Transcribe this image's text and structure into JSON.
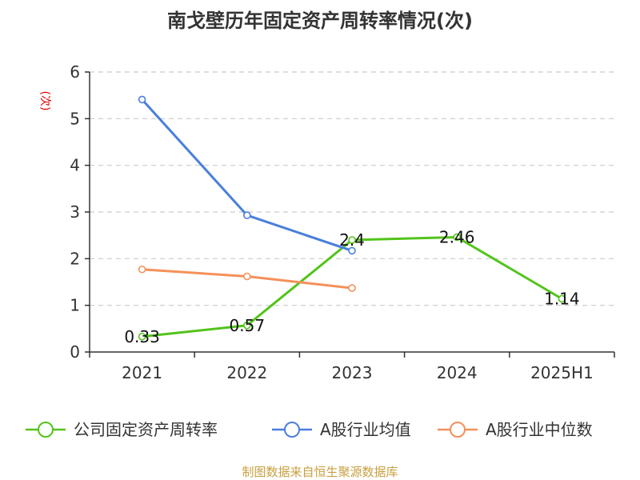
{
  "chart_data": {
    "type": "line",
    "title": "南戈壁历年固定资产周转率情况(次)",
    "ylabel": "(次)",
    "xlabel": "",
    "categories": [
      "2021",
      "2022",
      "2023",
      "2024",
      "2025H1"
    ],
    "ylim": [
      0,
      6
    ],
    "yticks": [
      0,
      1,
      2,
      3,
      4,
      5,
      6
    ],
    "grid": true,
    "legend_position": "bottom",
    "series": [
      {
        "name": "公司固定资产周转率",
        "color": "#52c41a",
        "values": [
          0.33,
          0.57,
          2.4,
          2.46,
          1.14
        ],
        "labels": [
          "0.33",
          "0.57",
          "2.4",
          "2.46",
          "1.14"
        ]
      },
      {
        "name": "A股行业均值",
        "color": "#4a7fdc",
        "values": [
          5.41,
          2.93,
          2.17,
          null,
          null
        ]
      },
      {
        "name": "A股行业中位数",
        "color": "#f5905a",
        "values": [
          1.77,
          1.62,
          1.37,
          null,
          null
        ]
      }
    ]
  },
  "source_text": "制图数据来自恒生聚源数据库"
}
